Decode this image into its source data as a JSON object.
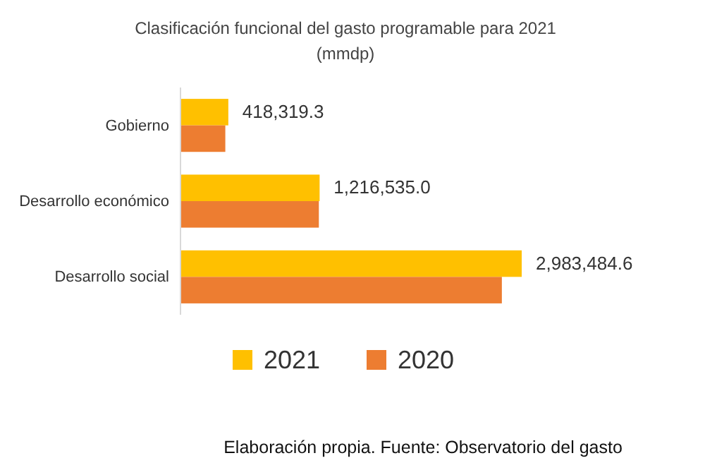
{
  "chart_data": {
    "type": "bar",
    "orientation": "horizontal",
    "title": "Clasificación funcional del gasto programable para 2021",
    "subtitle": "(mmdp)",
    "categories": [
      "Gobierno",
      "Desarrollo económico",
      "Desarrollo social"
    ],
    "series": [
      {
        "name": "2021",
        "color": "#ffc000",
        "values": [
          418319.3,
          1216535.0,
          2983484.6
        ],
        "value_labels": [
          "418,319.3",
          "1,216,535.0",
          "2,983,484.6"
        ]
      },
      {
        "name": "2020",
        "color": "#ed7d31",
        "values": [
          392000,
          1210000,
          2810000
        ]
      }
    ],
    "tick_labels": "y",
    "legend": "bottom",
    "annotations": [
      "Elaboración propia. Fuente: Observatorio del gasto"
    ]
  }
}
